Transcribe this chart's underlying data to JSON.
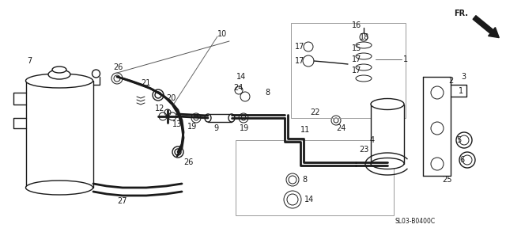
{
  "bg_color": "#ffffff",
  "line_color": "#1a1a1a",
  "gray": "#888888",
  "diagram_code": "SL03-B0400C"
}
